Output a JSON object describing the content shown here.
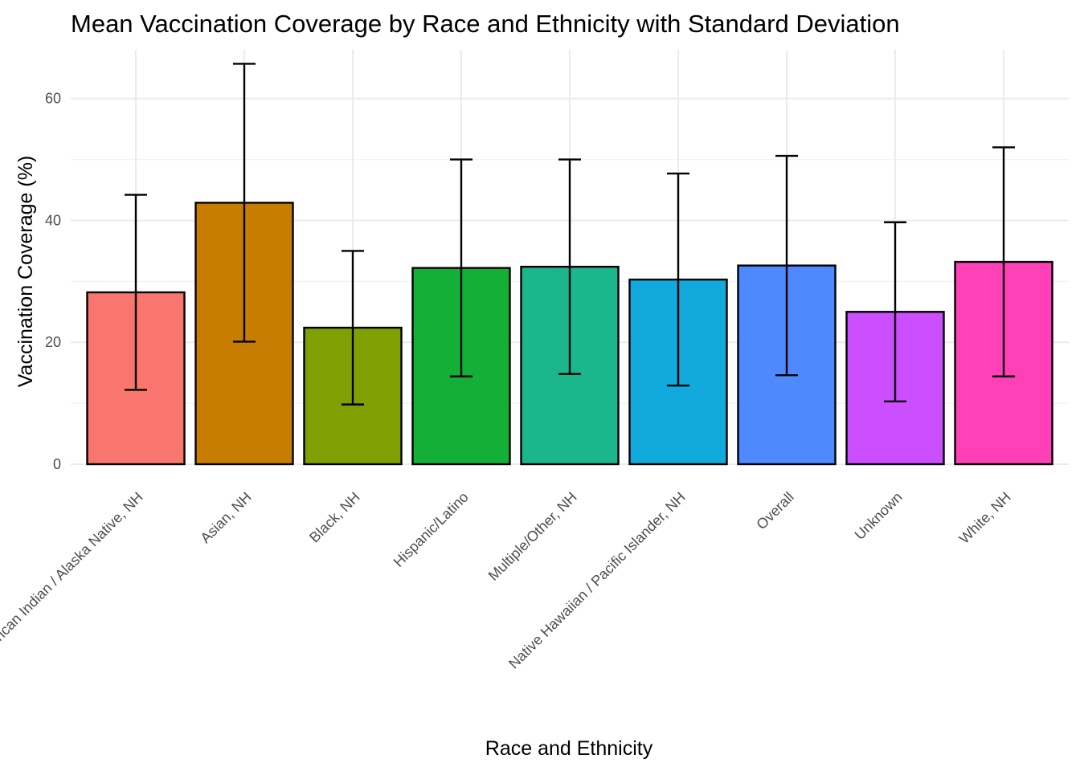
{
  "chart_data": {
    "type": "bar",
    "title": "Mean Vaccination Coverage by Race and Ethnicity with Standard Deviation",
    "xlabel": "Race and Ethnicity",
    "ylabel": "Vaccination Coverage (%)",
    "ylim": [
      0,
      68
    ],
    "yticks": [
      0,
      20,
      40,
      60
    ],
    "grid": true,
    "legend": "none",
    "categories": [
      "American Indian / Alaska Native, NH",
      "Asian, NH",
      "Black, NH",
      "Hispanic/Latino",
      "Multiple/Other, NH",
      "Native Hawaiian / Pacific Islander, NH",
      "Overall",
      "Unknown",
      "White, NH"
    ],
    "series": [
      {
        "values": [
          28.2,
          42.9,
          22.4,
          32.2,
          32.4,
          30.3,
          32.6,
          25.0,
          33.2
        ],
        "sd": [
          16.0,
          22.8,
          12.6,
          17.8,
          17.6,
          17.4,
          18.0,
          14.7,
          18.8
        ]
      }
    ],
    "colors": [
      "#F8766D",
      "#C77C02",
      "#7F9F03",
      "#14AF36",
      "#1BB68C",
      "#12A9DC",
      "#4E89FF",
      "#CB4FFF",
      "#FF40B7"
    ]
  }
}
